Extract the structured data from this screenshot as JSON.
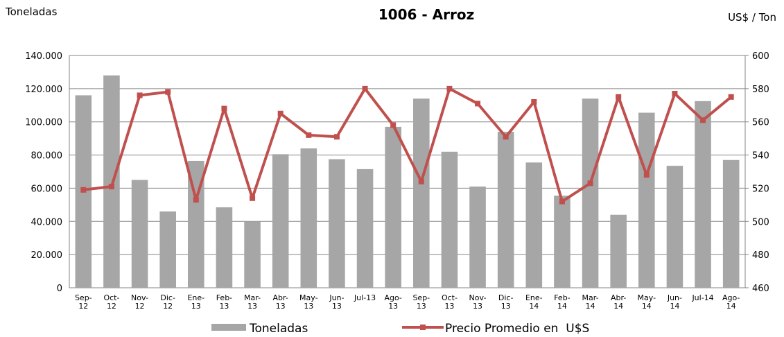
{
  "chart_data": {
    "type": "bar_line",
    "title": "1006 - Arroz",
    "y_axis_label": "Toneladas",
    "y2_axis_label": "US$ / Ton",
    "categories": [
      "Sep-12",
      "Oct-12",
      "Nov-12",
      "Dic-12",
      "Ene-13",
      "Feb-13",
      "Mar-13",
      "Abr-13",
      "May-13",
      "Jun-13",
      "Jul-13",
      "Ago-13",
      "Sep-13",
      "Oct-13",
      "Nov-13",
      "Dic-13",
      "Ene-14",
      "Feb-14",
      "Mar-14",
      "Abr-14",
      "May-14",
      "Jun-14",
      "Jul-14",
      "Ago-14"
    ],
    "series": [
      {
        "name": "Toneladas",
        "type": "bar",
        "color": "#a6a6a6",
        "values": [
          116000,
          128000,
          65000,
          46000,
          76500,
          48500,
          40000,
          80500,
          84000,
          77500,
          71500,
          97000,
          114000,
          82000,
          61000,
          94000,
          75500,
          55500,
          114000,
          44000,
          105500,
          73500,
          112500,
          77000
        ]
      },
      {
        "name": "Precio Promedio en  U$S",
        "type": "line",
        "axis": "y2",
        "color": "#c0504d",
        "values": [
          519,
          521,
          576,
          578,
          513,
          568,
          514,
          565,
          552,
          551,
          580,
          558,
          524,
          580,
          571,
          551,
          572,
          512,
          523,
          575,
          528,
          577,
          561,
          575
        ]
      }
    ],
    "ylim": [
      0,
      140000
    ],
    "yticks": [
      0,
      {
        "value": 20000,
        "label": "20.000"
      },
      {
        "value": 40000,
        "label": "40.000"
      },
      {
        "value": 60000,
        "label": "60.000"
      },
      {
        "value": 80000,
        "label": "80.000"
      },
      {
        "value": 100000,
        "label": "100.000"
      },
      {
        "value": 120000,
        "label": "120.000"
      },
      {
        "value": 140000,
        "label": "140.000"
      }
    ],
    "y2lim": [
      460,
      600
    ],
    "y2ticks": [
      460,
      480,
      500,
      520,
      540,
      560,
      580,
      600
    ],
    "grid": true,
    "legend": "bottom"
  }
}
